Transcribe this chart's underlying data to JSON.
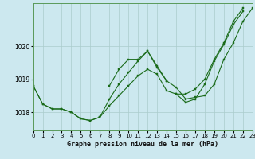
{
  "title": "Graphe pression niveau de la mer (hPa)",
  "bg_color": "#cce8ef",
  "grid_color": "#aacccc",
  "line_color": "#1a6b1a",
  "xlim": [
    0,
    23
  ],
  "ylim": [
    1017.45,
    1021.3
  ],
  "yticks": [
    1018,
    1019,
    1020
  ],
  "xticks": [
    0,
    1,
    2,
    3,
    4,
    5,
    6,
    7,
    8,
    9,
    10,
    11,
    12,
    13,
    14,
    15,
    16,
    17,
    18,
    19,
    20,
    21,
    22,
    23
  ],
  "series": [
    [
      1018.8,
      1018.25,
      1018.1,
      1018.1,
      1018.0,
      1017.8,
      1017.75,
      1017.85,
      1018.2,
      1018.5,
      1018.8,
      1019.1,
      1019.3,
      1019.15,
      1018.65,
      1018.55,
      1018.3,
      1018.4,
      1018.85,
      1019.55,
      1020.05,
      1020.65,
      1021.05,
      null
    ],
    [
      null,
      null,
      null,
      null,
      null,
      null,
      null,
      null,
      1018.8,
      1019.3,
      1019.6,
      1019.6,
      1019.85,
      1019.35,
      1018.95,
      1018.75,
      1018.4,
      1018.45,
      1018.5,
      1018.85,
      1019.6,
      1020.1,
      1020.75,
      1021.15
    ],
    [
      1018.8,
      1018.25,
      1018.1,
      1018.1,
      1018.0,
      1017.8,
      1017.75,
      1017.85,
      1018.4,
      1018.85,
      1019.2,
      1019.55,
      1019.85,
      1019.4,
      1018.95,
      null,
      null,
      null,
      null,
      null,
      null,
      null,
      null,
      null
    ],
    [
      null,
      null,
      null,
      null,
      null,
      null,
      null,
      null,
      null,
      null,
      null,
      null,
      null,
      null,
      null,
      1018.55,
      1018.55,
      1018.7,
      1019.0,
      1019.6,
      1020.1,
      1020.75,
      1021.15,
      null
    ]
  ]
}
